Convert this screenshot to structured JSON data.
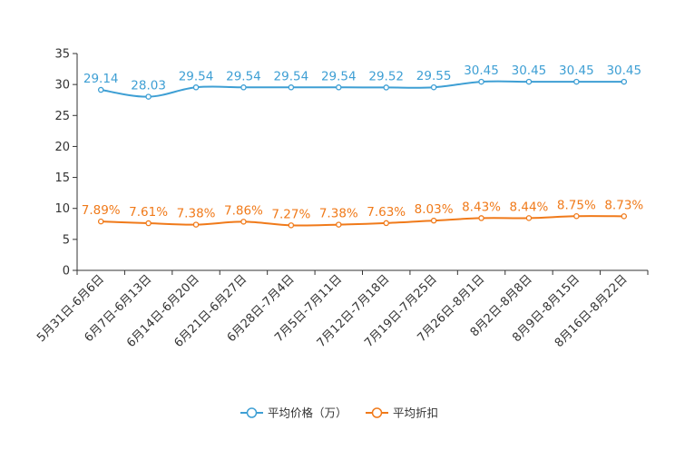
{
  "chart_data": {
    "type": "line",
    "categories": [
      "5月31日-6月6日",
      "6月7日-6月13日",
      "6月14日-6月20日",
      "6月21日-6月27日",
      "6月28日-7月4日",
      "7月5日-7月11日",
      "7月12日-7月18日",
      "7月19日-7月25日",
      "7月26日-8月1日",
      "8月2日-8月8日",
      "8月9日-8月15日",
      "8月16日-8月22日"
    ],
    "ylim": [
      0,
      35
    ],
    "yticks": [
      0,
      5,
      10,
      15,
      20,
      25,
      30,
      35
    ],
    "series": [
      {
        "name": "平均价格（万）",
        "color": "#3e9fd4",
        "values": [
          29.14,
          28.03,
          29.54,
          29.54,
          29.54,
          29.54,
          29.52,
          29.55,
          30.45,
          30.45,
          30.45,
          30.45
        ],
        "labels": [
          "29.14",
          "28.03",
          "29.54",
          "29.54",
          "29.54",
          "29.54",
          "29.52",
          "29.55",
          "30.45",
          "30.45",
          "30.45",
          "30.45"
        ]
      },
      {
        "name": "平均折扣",
        "color": "#f07a1a",
        "values": [
          7.89,
          7.61,
          7.38,
          7.86,
          7.27,
          7.38,
          7.63,
          8.03,
          8.43,
          8.44,
          8.75,
          8.73
        ],
        "labels": [
          "7.89%",
          "7.61%",
          "7.38%",
          "7.86%",
          "7.27%",
          "7.38%",
          "7.63%",
          "8.03%",
          "8.43%",
          "8.44%",
          "8.75%",
          "8.73%"
        ]
      }
    ],
    "legend": "bottom-center"
  }
}
